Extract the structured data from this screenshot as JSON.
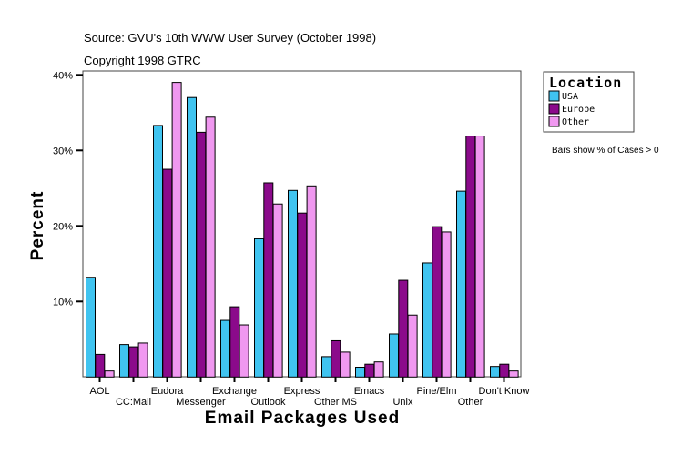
{
  "header": {
    "source": "Source: GVU's 10th WWW User Survey (October 1998)",
    "copyright": "Copyright 1998 GTRC"
  },
  "note": "Bars show % of Cases > 0",
  "chart_data": {
    "type": "bar",
    "xlabel": "Email Packages Used",
    "ylabel": "Percent",
    "ylim": [
      0,
      40
    ],
    "yticks": [
      "10%",
      "20%",
      "30%",
      "40%"
    ],
    "yticks_values": [
      10,
      20,
      30,
      40
    ],
    "grid": false,
    "legend": {
      "title": "Location",
      "placement": "right"
    },
    "categories": [
      "AOL",
      "CC:Mail",
      "Eudora",
      "Messenger",
      "Exchange",
      "Outlook",
      "Express",
      "Other MS",
      "Emacs",
      "Unix",
      "Pine/Elm",
      "Other",
      "Don't Know"
    ],
    "series": [
      {
        "name": "USA",
        "color": "#40c4f0",
        "values": [
          13.2,
          4.3,
          33.3,
          37.0,
          7.5,
          18.3,
          24.7,
          2.7,
          1.3,
          5.7,
          15.1,
          24.6,
          1.4
        ]
      },
      {
        "name": "Europe",
        "color": "#8b0a8b",
        "values": [
          3.0,
          4.0,
          27.5,
          32.4,
          9.3,
          25.7,
          21.7,
          4.8,
          1.7,
          12.8,
          19.9,
          31.9,
          1.7
        ]
      },
      {
        "name": "Other",
        "color": "#f098f0",
        "values": [
          0.8,
          4.5,
          39.0,
          34.4,
          6.9,
          22.9,
          25.3,
          3.3,
          2.0,
          8.2,
          19.2,
          31.9,
          0.8
        ]
      }
    ]
  }
}
